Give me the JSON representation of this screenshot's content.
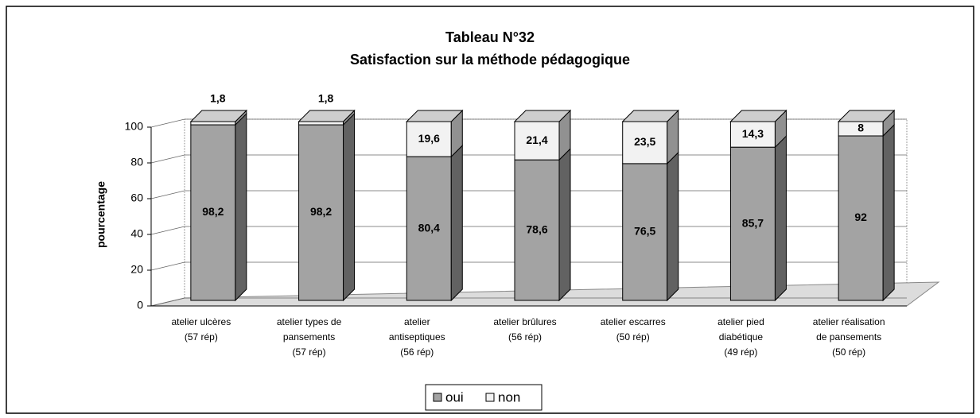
{
  "chart_data": {
    "type": "bar",
    "stacked": true,
    "three_d": true,
    "title": "Tableau N°32",
    "subtitle": "Satisfaction sur la méthode pédagogique",
    "y_label": "pourcentage",
    "categories": [
      "atelier ulcères\n(57 rép)",
      "atelier types de\npansements\n(57 rép)",
      "atelier\nantiseptiques\n(56 rép)",
      "atelier brûlures\n(56 rép)",
      "atelier escarres\n(50 rép)",
      "atelier pied\ndiabétique\n(49 rép)",
      "atelier réalisation\nde pansements\n(50 rép)"
    ],
    "series": [
      {
        "name": "oui",
        "color": "#a3a3a3",
        "values": [
          98.2,
          98.2,
          80.4,
          78.6,
          76.5,
          85.7,
          92
        ],
        "value_labels": [
          "98,2",
          "98,2",
          "80,4",
          "78,6",
          "76,5",
          "85,7",
          "92"
        ]
      },
      {
        "name": "non",
        "color": "#f2f2f2",
        "values": [
          1.8,
          1.8,
          19.6,
          21.4,
          23.5,
          14.3,
          8
        ],
        "value_labels": [
          "1,8",
          "1,8",
          "19,6",
          "21,4",
          "23,5",
          "14,3",
          "8"
        ]
      }
    ],
    "ylim": [
      0,
      100
    ],
    "yticks": [
      0,
      20,
      40,
      60,
      80,
      100
    ],
    "grid": true,
    "legend": "bottom"
  }
}
